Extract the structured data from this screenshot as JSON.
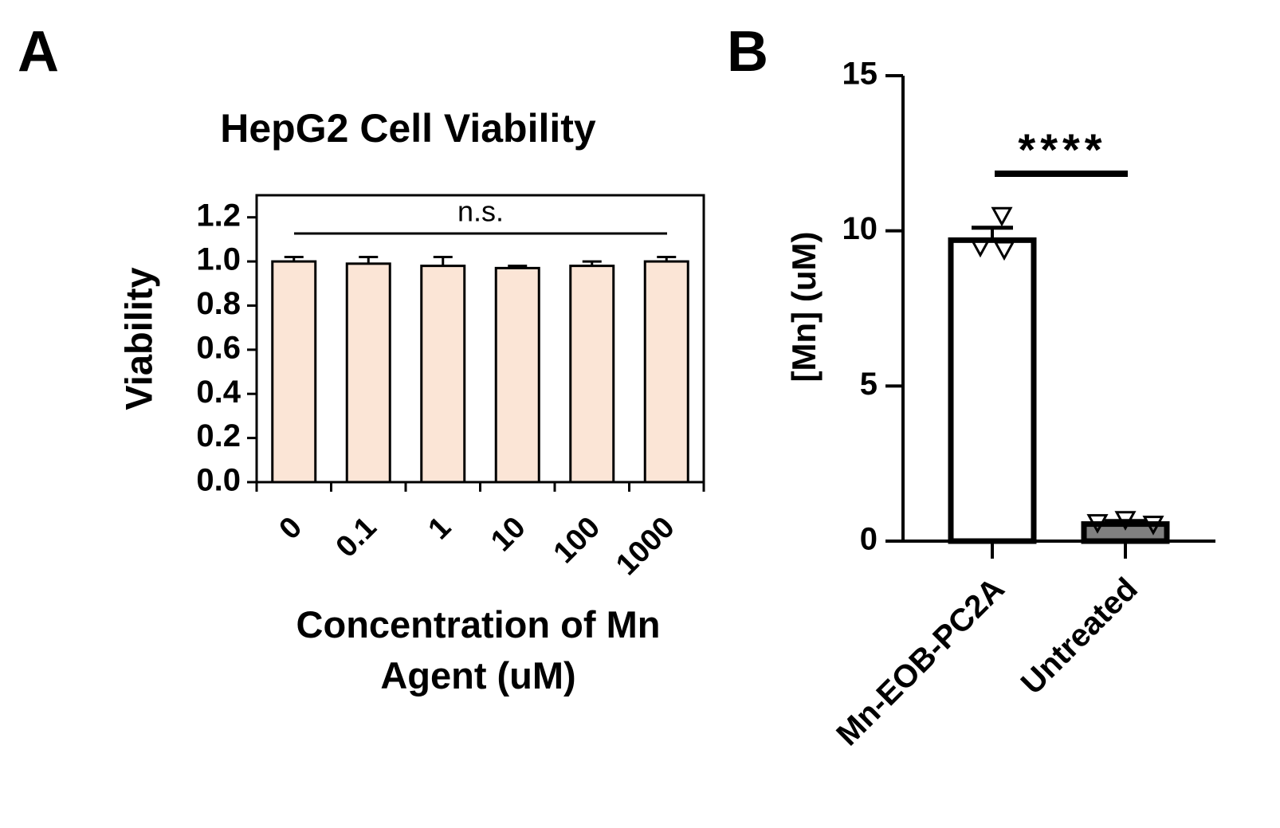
{
  "chart_data": [
    {
      "type": "bar",
      "panel_label": "A",
      "title": "HepG2 Cell Viability",
      "categories": [
        "0",
        "0.1",
        "1",
        "10",
        "100",
        "1000"
      ],
      "values": [
        1.0,
        0.99,
        0.98,
        0.97,
        0.98,
        1.0
      ],
      "errors": [
        0.02,
        0.03,
        0.04,
        0.01,
        0.02,
        0.02
      ],
      "color": "#fbe5d6",
      "ylim": [
        0,
        1.3
      ],
      "yticks": [
        {
          "value": 0,
          "label": "0.0"
        },
        0.2,
        0.4,
        0.6,
        0.8,
        {
          "value": 1,
          "label": "1.0"
        },
        1.2
      ],
      "ylabel": "Viability",
      "xlabel": "Concentration of Mn Agent (uM)",
      "annotation": "n.s."
    },
    {
      "type": "bar",
      "panel_label": "B",
      "categories": [
        "Mn-EOB-PC2A",
        "Untreated"
      ],
      "values": [
        9.7,
        0.55
      ],
      "errors": [
        0.4,
        0.1
      ],
      "points": [
        [
          10.5,
          9.5,
          9.4
        ],
        [
          0.6,
          0.7,
          0.55
        ]
      ],
      "colors": [
        "#ffffff",
        "#808080"
      ],
      "ylim": [
        0,
        15
      ],
      "yticks": [
        0,
        5,
        10,
        15
      ],
      "ylabel": "[Mn] (uM)",
      "annotation": "****"
    }
  ]
}
